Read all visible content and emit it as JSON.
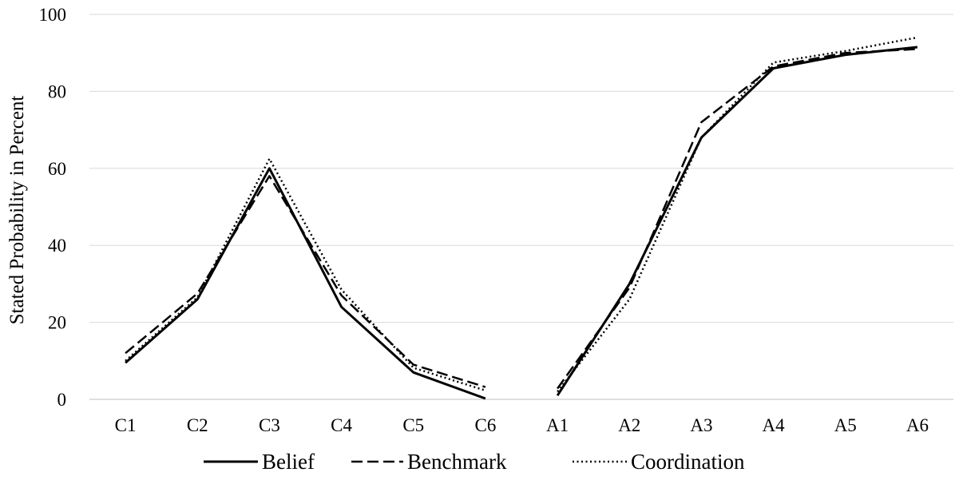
{
  "chart_data": {
    "type": "line",
    "categories": [
      "C1",
      "C2",
      "C3",
      "C4",
      "C5",
      "C6",
      "A1",
      "A2",
      "A3",
      "A4",
      "A5",
      "A6"
    ],
    "ylabel": "Stated Probability in Percent",
    "ylim": [
      0,
      100
    ],
    "yticks": [
      0,
      20,
      40,
      60,
      80,
      100
    ],
    "grid": "horizontal",
    "legend_position": "bottom",
    "series": [
      {
        "name": "Belief",
        "style": "solid",
        "values": [
          9.5,
          26,
          60,
          24,
          7,
          0.2,
          1,
          30,
          68,
          86,
          89.5,
          91.5
        ]
      },
      {
        "name": "Benchmark",
        "style": "dashed",
        "values": [
          12,
          27.5,
          58,
          27,
          9,
          3.2,
          2.8,
          29,
          72,
          86.5,
          90,
          91
        ]
      },
      {
        "name": "Coordination",
        "style": "dotted",
        "values": [
          10,
          26.5,
          62.5,
          28.5,
          8.2,
          2.3,
          2,
          26,
          68,
          87.5,
          90.5,
          94
        ]
      }
    ],
    "colors": {
      "line": "#000000",
      "grid": "#d9d9d9"
    }
  }
}
